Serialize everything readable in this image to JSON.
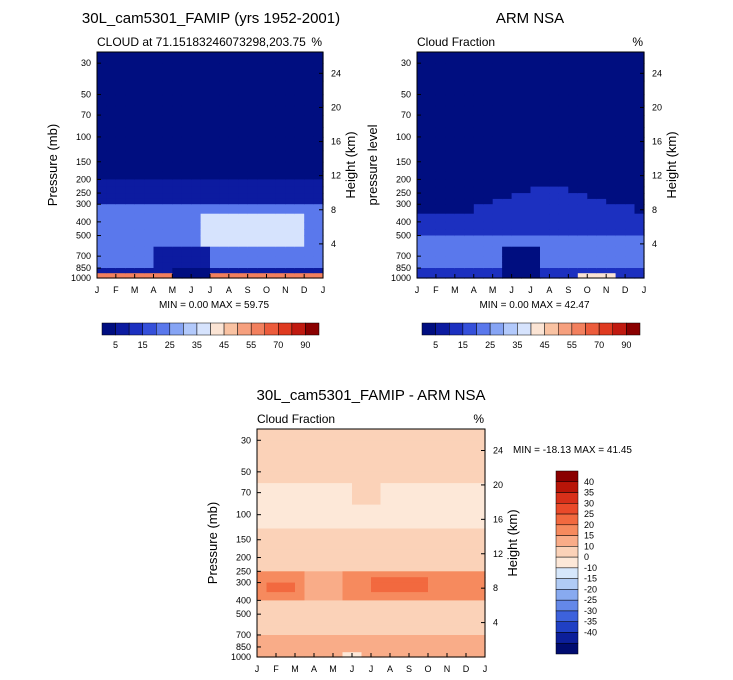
{
  "chart_data": [
    {
      "type": "contour",
      "title": "30L_cam5301_FAMIP (yrs 1952-2001)",
      "subtitle_left": "CLOUD at 71.15183246073298,203.75",
      "subtitle_right": "%",
      "ylabel": "Pressure (mb)",
      "ylabel_right": "Height (km)",
      "x_ticks": [
        "J",
        "F",
        "M",
        "A",
        "M",
        "J",
        "J",
        "A",
        "S",
        "O",
        "N",
        "D",
        "J"
      ],
      "pressure_ticks": [
        "30",
        "50",
        "70",
        "100",
        "150",
        "200",
        "250",
        "300",
        "400",
        "500",
        "700",
        "850",
        "1000"
      ],
      "height_ticks": [
        "24",
        "20",
        "16",
        "12",
        "8",
        "4"
      ],
      "stats": "MIN =   0.00 MAX =  59.75",
      "colorbar_labels": [
        "5",
        "15",
        "25",
        "35",
        "45",
        "55",
        "70",
        "90"
      ],
      "colors": [
        "#000e80",
        "#0c1ba0",
        "#1c30c0",
        "#3550da",
        "#5a78ec",
        "#86a4f4",
        "#b2c9fb",
        "#d6e3fd",
        "#fbe4d4",
        "#f9c2a2",
        "#f6a07e",
        "#f2805e",
        "#ec5c3c",
        "#df3a20",
        "#c01a10",
        "#8a0000"
      ]
    },
    {
      "type": "contour",
      "title": "ARM NSA",
      "subtitle_left": "Cloud Fraction",
      "subtitle_right": "%",
      "ylabel": "pressure level",
      "ylabel_right": "Height (km)",
      "x_ticks": [
        "J",
        "F",
        "M",
        "A",
        "M",
        "J",
        "J",
        "A",
        "S",
        "O",
        "N",
        "D",
        "J"
      ],
      "pressure_ticks": [
        "30",
        "50",
        "70",
        "100",
        "150",
        "200",
        "250",
        "300",
        "400",
        "500",
        "700",
        "850",
        "1000"
      ],
      "height_ticks": [
        "24",
        "20",
        "16",
        "12",
        "8",
        "4"
      ],
      "stats": "MIN =   0.00 MAX =  42.47",
      "colorbar_labels": [
        "5",
        "15",
        "25",
        "35",
        "45",
        "55",
        "70",
        "90"
      ],
      "colors": [
        "#000e80",
        "#0c1ba0",
        "#1c30c0",
        "#3550da",
        "#5a78ec",
        "#86a4f4",
        "#b2c9fb",
        "#d6e3fd",
        "#fbe4d4",
        "#f9c2a2",
        "#f6a07e",
        "#f2805e",
        "#ec5c3c",
        "#df3a20",
        "#c01a10",
        "#8a0000"
      ]
    },
    {
      "type": "contour",
      "title": "30L_cam5301_FAMIP - ARM NSA",
      "subtitle_left": "Cloud Fraction",
      "subtitle_right": "%",
      "ylabel": "Pressure (mb)",
      "ylabel_right": "Height (km)",
      "x_ticks": [
        "J",
        "F",
        "M",
        "A",
        "M",
        "J",
        "J",
        "A",
        "S",
        "O",
        "N",
        "D",
        "J"
      ],
      "pressure_ticks": [
        "30",
        "50",
        "70",
        "100",
        "150",
        "200",
        "250",
        "300",
        "400",
        "500",
        "700",
        "850",
        "1000"
      ],
      "height_ticks": [
        "24",
        "20",
        "16",
        "12",
        "8",
        "4"
      ],
      "stats": "MIN = -18.13 MAX =  41.45",
      "colorbar_labels": [
        "40",
        "35",
        "30",
        "25",
        "20",
        "15",
        "10",
        "0",
        "-10",
        "-15",
        "-20",
        "-25",
        "-30",
        "-35",
        "-40"
      ],
      "colors": [
        "#8a0000",
        "#b81508",
        "#d8301a",
        "#ea4a2a",
        "#f2693f",
        "#f68a5e",
        "#f9ac88",
        "#fbd2b8",
        "#fde8d8",
        "#d6e7fb",
        "#b0cbf5",
        "#88aaf0",
        "#6488e8",
        "#3d62dc",
        "#2040c4",
        "#0c1f9a",
        "#000c70"
      ]
    }
  ]
}
